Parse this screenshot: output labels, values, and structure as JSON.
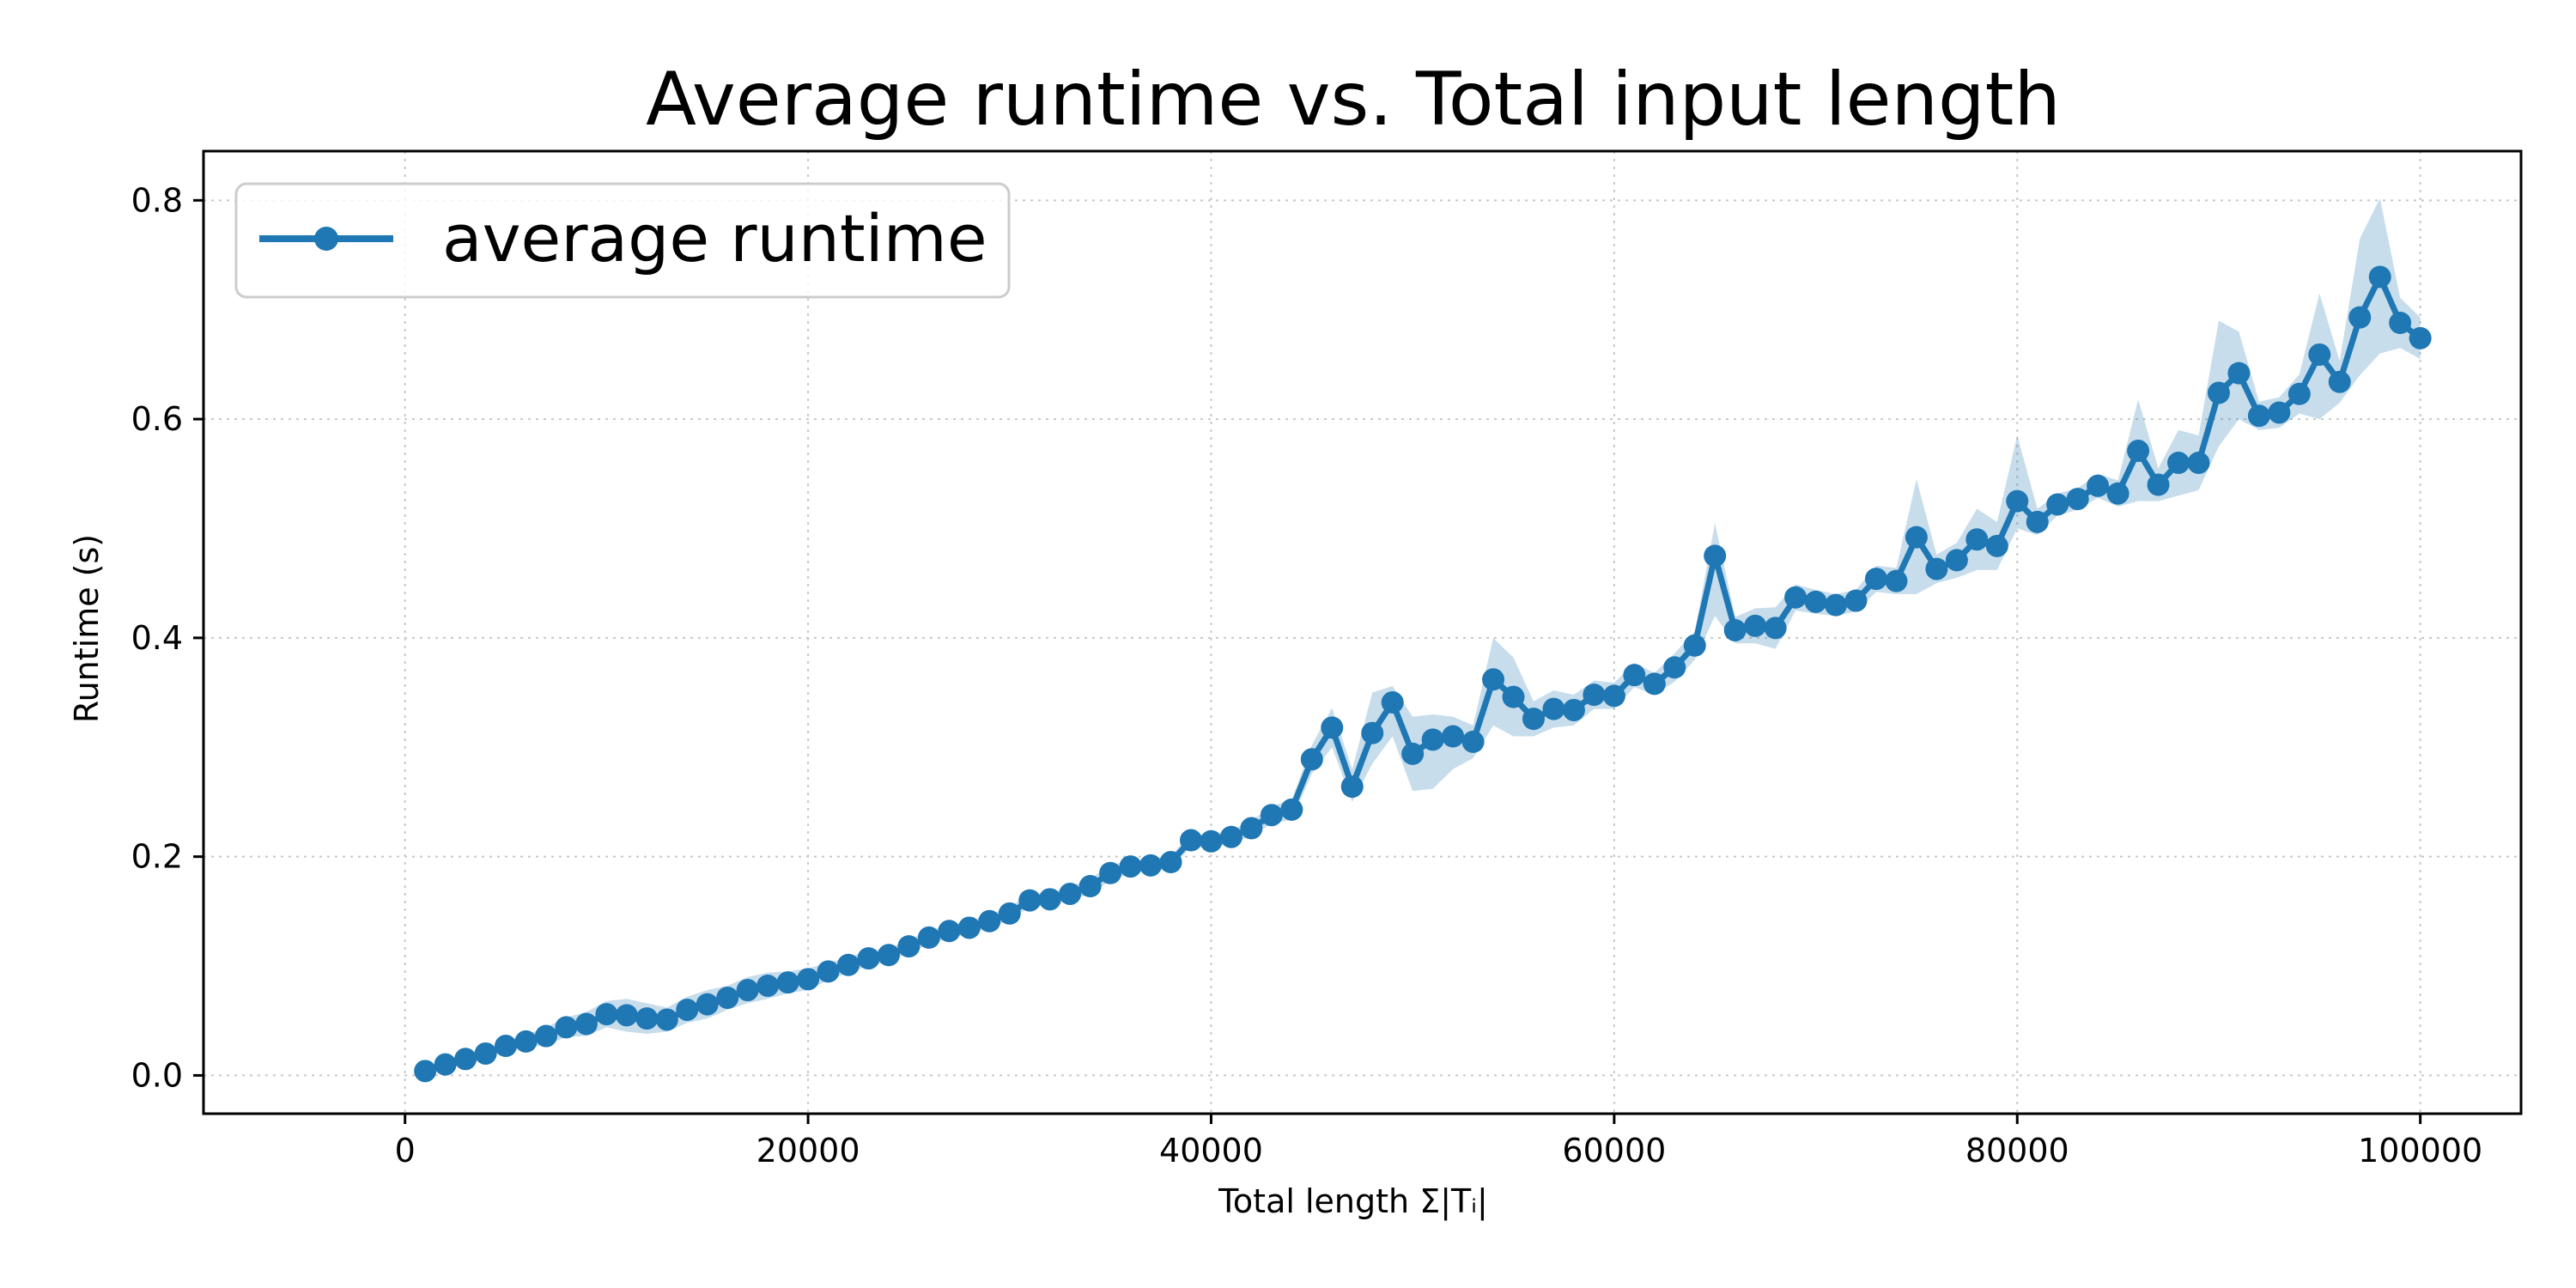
{
  "chart_data": {
    "type": "line",
    "title": "Average runtime vs. Total input length",
    "xlabel": "Total length Σ|Tᵢ|",
    "ylabel": "Runtime (s)",
    "xlim": [
      -10000,
      105000
    ],
    "ylim": [
      -0.035,
      0.845
    ],
    "x_ticks": [
      0,
      20000,
      40000,
      60000,
      80000,
      100000
    ],
    "x_tick_labels": [
      "0",
      "20000",
      "40000",
      "60000",
      "80000",
      "100000"
    ],
    "y_ticks": [
      0.0,
      0.2,
      0.4,
      0.6,
      0.8
    ],
    "y_tick_labels": [
      "0.0",
      "0.2",
      "0.4",
      "0.6",
      "0.8"
    ],
    "grid": true,
    "legend": {
      "position": "top-left",
      "entries": [
        "average runtime"
      ]
    },
    "colors": {
      "line": "#1f77b4",
      "band": "#1f77b4"
    },
    "series": [
      {
        "name": "average runtime",
        "x": [
          1000,
          2000,
          3000,
          4000,
          5000,
          6000,
          7000,
          8000,
          9000,
          10000,
          11000,
          12000,
          13000,
          14000,
          15000,
          16000,
          17000,
          18000,
          19000,
          20000,
          21000,
          22000,
          23000,
          24000,
          25000,
          26000,
          27000,
          28000,
          29000,
          30000,
          31000,
          32000,
          33000,
          34000,
          35000,
          36000,
          37000,
          38000,
          39000,
          40000,
          41000,
          42000,
          43000,
          44000,
          45000,
          46000,
          47000,
          48000,
          49000,
          50000,
          51000,
          52000,
          53000,
          54000,
          55000,
          56000,
          57000,
          58000,
          59000,
          60000,
          61000,
          62000,
          63000,
          64000,
          65000,
          66000,
          67000,
          68000,
          69000,
          70000,
          71000,
          72000,
          73000,
          74000,
          75000,
          76000,
          77000,
          78000,
          79000,
          80000,
          81000,
          82000,
          83000,
          84000,
          85000,
          86000,
          87000,
          88000,
          89000,
          90000,
          91000,
          92000,
          93000,
          94000,
          95000,
          96000,
          97000,
          98000,
          99000,
          100000
        ],
        "values": [
          0.004,
          0.01,
          0.015,
          0.02,
          0.027,
          0.031,
          0.036,
          0.044,
          0.047,
          0.056,
          0.055,
          0.052,
          0.051,
          0.06,
          0.065,
          0.071,
          0.078,
          0.082,
          0.085,
          0.088,
          0.095,
          0.101,
          0.107,
          0.11,
          0.118,
          0.126,
          0.132,
          0.135,
          0.141,
          0.148,
          0.16,
          0.161,
          0.166,
          0.173,
          0.185,
          0.191,
          0.192,
          0.195,
          0.215,
          0.214,
          0.218,
          0.226,
          0.238,
          0.243,
          0.289,
          0.318,
          0.264,
          0.313,
          0.341,
          0.294,
          0.307,
          0.31,
          0.305,
          0.362,
          0.346,
          0.326,
          0.335,
          0.334,
          0.348,
          0.347,
          0.366,
          0.358,
          0.373,
          0.393,
          0.475,
          0.407,
          0.411,
          0.409,
          0.437,
          0.433,
          0.43,
          0.434,
          0.454,
          0.452,
          0.492,
          0.463,
          0.471,
          0.49,
          0.484,
          0.525,
          0.506,
          0.522,
          0.527,
          0.539,
          0.532,
          0.571,
          0.54,
          0.56,
          0.56,
          0.624,
          0.642,
          0.603,
          0.606,
          0.623,
          0.659,
          0.634,
          0.693,
          0.73,
          0.688,
          0.674
        ],
        "band_lower": [
          0.0,
          0.006,
          0.011,
          0.015,
          0.022,
          0.025,
          0.028,
          0.035,
          0.036,
          0.044,
          0.04,
          0.038,
          0.04,
          0.048,
          0.052,
          0.06,
          0.066,
          0.07,
          0.075,
          0.078,
          0.087,
          0.094,
          0.1,
          0.104,
          0.112,
          0.12,
          0.126,
          0.129,
          0.135,
          0.142,
          0.154,
          0.155,
          0.16,
          0.166,
          0.178,
          0.185,
          0.186,
          0.189,
          0.209,
          0.208,
          0.212,
          0.219,
          0.23,
          0.234,
          0.276,
          0.3,
          0.25,
          0.285,
          0.31,
          0.26,
          0.262,
          0.28,
          0.29,
          0.32,
          0.31,
          0.31,
          0.318,
          0.32,
          0.335,
          0.335,
          0.355,
          0.348,
          0.36,
          0.38,
          0.42,
          0.395,
          0.395,
          0.39,
          0.425,
          0.422,
          0.42,
          0.424,
          0.442,
          0.44,
          0.44,
          0.45,
          0.455,
          0.462,
          0.462,
          0.5,
          0.494,
          0.512,
          0.517,
          0.528,
          0.52,
          0.525,
          0.525,
          0.53,
          0.535,
          0.575,
          0.6,
          0.59,
          0.592,
          0.605,
          0.6,
          0.615,
          0.64,
          0.66,
          0.665,
          0.655
        ],
        "band_upper": [
          0.008,
          0.014,
          0.019,
          0.025,
          0.032,
          0.037,
          0.044,
          0.053,
          0.058,
          0.068,
          0.07,
          0.066,
          0.062,
          0.072,
          0.078,
          0.082,
          0.09,
          0.094,
          0.095,
          0.098,
          0.103,
          0.108,
          0.114,
          0.116,
          0.124,
          0.132,
          0.138,
          0.141,
          0.147,
          0.154,
          0.166,
          0.167,
          0.172,
          0.18,
          0.192,
          0.197,
          0.198,
          0.201,
          0.221,
          0.22,
          0.224,
          0.233,
          0.246,
          0.252,
          0.302,
          0.336,
          0.28,
          0.35,
          0.356,
          0.328,
          0.33,
          0.328,
          0.32,
          0.4,
          0.382,
          0.342,
          0.352,
          0.348,
          0.361,
          0.359,
          0.377,
          0.368,
          0.386,
          0.406,
          0.505,
          0.419,
          0.427,
          0.428,
          0.449,
          0.444,
          0.44,
          0.444,
          0.466,
          0.464,
          0.545,
          0.476,
          0.487,
          0.518,
          0.506,
          0.585,
          0.518,
          0.532,
          0.537,
          0.55,
          0.544,
          0.618,
          0.555,
          0.59,
          0.585,
          0.69,
          0.68,
          0.616,
          0.62,
          0.641,
          0.715,
          0.653,
          0.765,
          0.802,
          0.711,
          0.693
        ]
      }
    ]
  }
}
